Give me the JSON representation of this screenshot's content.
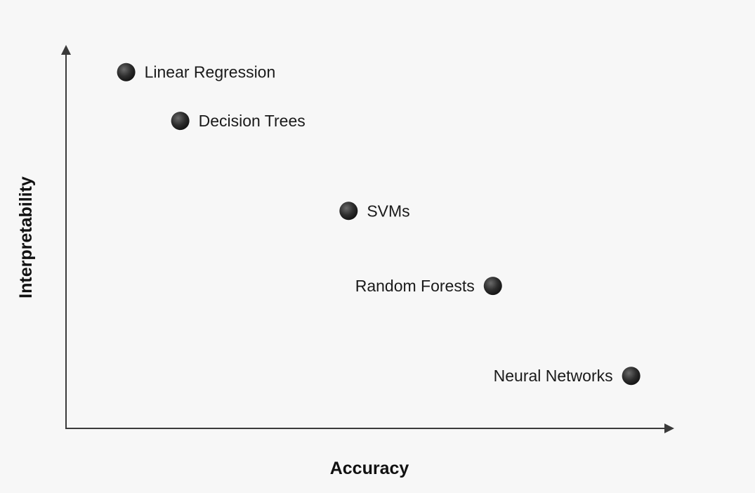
{
  "chart_data": {
    "type": "scatter",
    "title": "",
    "xlabel": "Accuracy",
    "ylabel": "Interpretability",
    "xlim": [
      0,
      10
    ],
    "ylim": [
      0,
      10
    ],
    "grid": false,
    "legend": "none",
    "marker_color": "#2b2b2b",
    "points": [
      {
        "label": "Linear Regression",
        "x": 1.0,
        "y": 9.5,
        "label_side": "right"
      },
      {
        "label": "Decision Trees",
        "x": 1.9,
        "y": 8.2,
        "label_side": "right"
      },
      {
        "label": "SVMs",
        "x": 4.7,
        "y": 5.8,
        "label_side": "right"
      },
      {
        "label": "Random Forests",
        "x": 7.1,
        "y": 3.8,
        "label_side": "left"
      },
      {
        "label": "Neural Networks",
        "x": 9.4,
        "y": 1.4,
        "label_side": "left"
      }
    ]
  }
}
